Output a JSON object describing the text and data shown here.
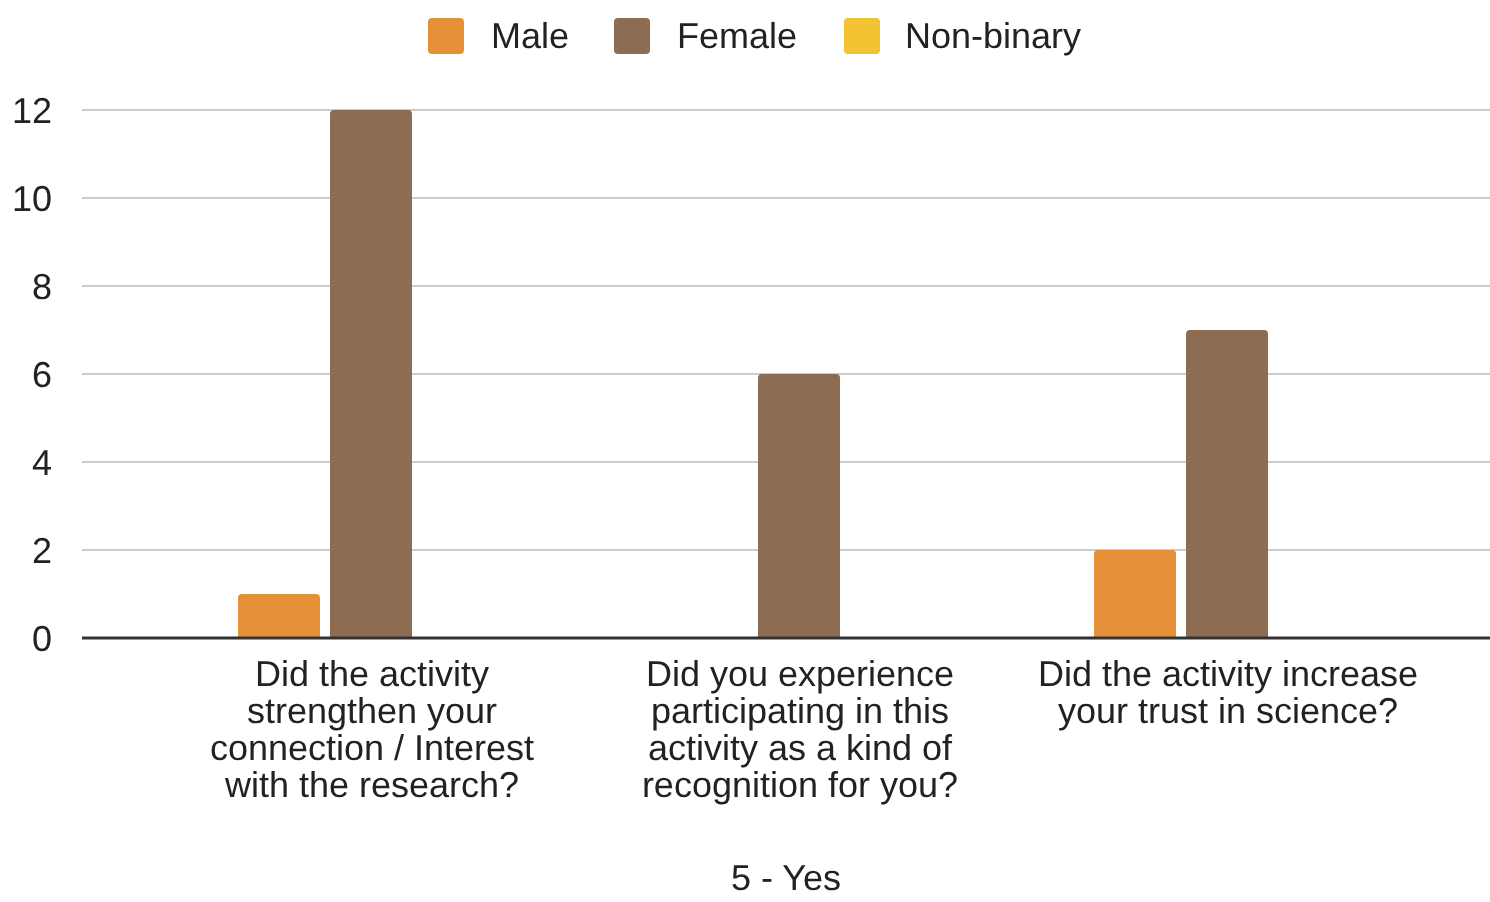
{
  "chart_data": {
    "type": "bar",
    "xlabel": "5 - Yes",
    "categories": [
      "Did the activity strengthen your connection / Interest with the research?",
      "Did you experience participating in this activity as a kind of recognition for you?",
      "Did the activity increase your trust in science?"
    ],
    "series": [
      {
        "name": "Male",
        "color": "#e69138",
        "values": [
          1,
          0,
          2
        ]
      },
      {
        "name": "Female",
        "color": "#8e6c52",
        "values": [
          12,
          6,
          7
        ]
      },
      {
        "name": "Non-binary",
        "color": "#f1c232",
        "values": [
          0,
          0,
          0
        ]
      }
    ],
    "ylim": [
      0,
      12
    ],
    "yticks": [
      0,
      2,
      4,
      6,
      8,
      10,
      12
    ],
    "grid": "y",
    "legend": "top"
  }
}
